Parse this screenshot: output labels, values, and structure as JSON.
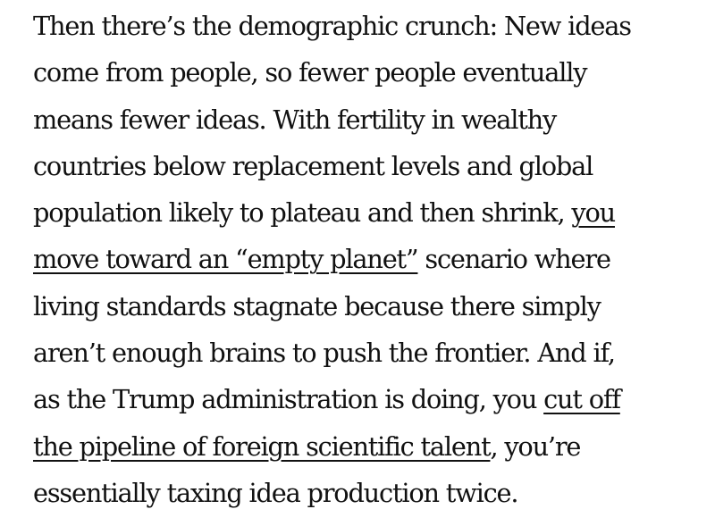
{
  "article": {
    "lines": [
      "Then there’s the demographic crunch: New ideas",
      "come from people, so fewer people eventually",
      "means fewer ideas. With fertility in wealthy",
      "countries below replacement levels and global",
      "population likely to plateau and then shrink, ",
      " scenario where",
      "living standards stagnate because there simply",
      "aren’t enough brains to push the frontier. And if,",
      "as the Trump administration is doing, you ",
      ", you’re",
      "essentially taxing idea production twice."
    ],
    "links": {
      "empty_planet": {
        "part1": "you",
        "part2": "move toward an “empty planet”"
      },
      "foreign_talent": {
        "part1": "cut off",
        "part2": "the pipeline of foreign scientific talent"
      }
    }
  }
}
